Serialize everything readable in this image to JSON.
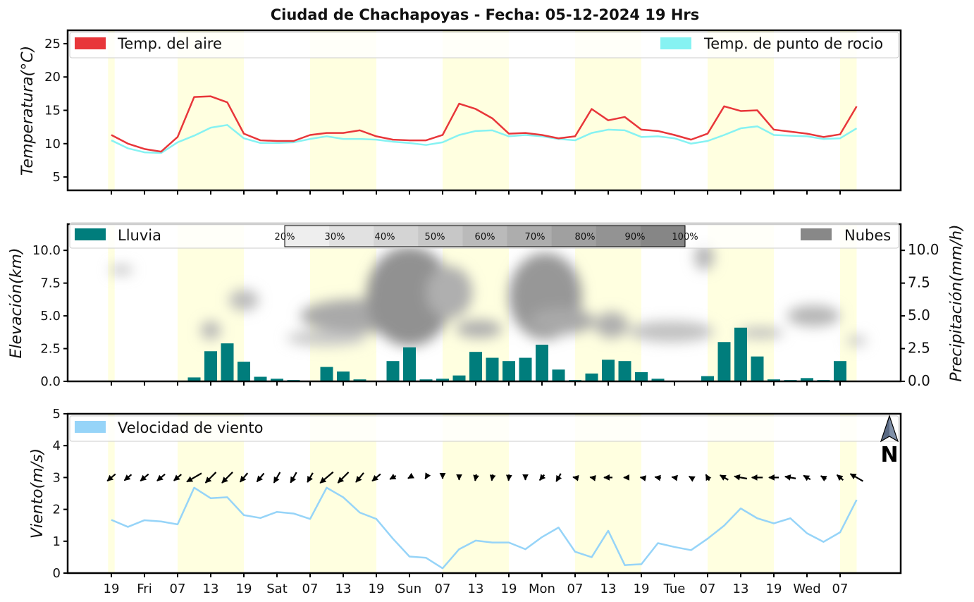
{
  "title": "Ciudad de Chachapoyas   -   Fecha: 05-12-2024 19 Hrs",
  "x_tick_labels": [
    "19",
    "Fri",
    "07",
    "13",
    "19",
    "Sat",
    "07",
    "13",
    "19",
    "Sun",
    "07",
    "13",
    "19",
    "Mon",
    "07",
    "13",
    "19",
    "Tue",
    "07",
    "13",
    "19",
    "Wed",
    "07"
  ],
  "day_bands": [
    [
      -0.1,
      0.1
    ],
    [
      2.0,
      4.0
    ],
    [
      6.0,
      8.0
    ],
    [
      10.0,
      12.0
    ],
    [
      14.0,
      16.0
    ],
    [
      18.0,
      20.0
    ],
    [
      22.0,
      22.5
    ]
  ],
  "chart_data": [
    {
      "type": "line",
      "ylabel": "Temperatura(°C)",
      "ylim": [
        3,
        27
      ],
      "yticks": [
        5,
        10,
        15,
        20,
        25
      ],
      "legend": {
        "left": "Temp. del aire",
        "right": "Temp. de punto de rocio"
      },
      "colors": {
        "air": "#e8363a",
        "dew": "#86f2f2",
        "band": "#ffffe0"
      },
      "x": [
        0,
        0.5,
        1,
        1.5,
        2,
        2.5,
        3,
        3.5,
        4,
        4.5,
        5,
        5.5,
        6,
        6.5,
        7,
        7.5,
        8,
        8.5,
        9,
        9.5,
        10,
        10.5,
        11,
        11.5,
        12,
        12.5,
        13,
        13.5,
        14,
        14.5,
        15,
        15.5,
        16,
        16.5,
        17,
        17.5,
        18,
        18.5,
        19,
        19.5,
        20,
        20.5,
        21,
        21.5,
        22,
        22.5
      ],
      "series": [
        {
          "name": "Temp. del aire",
          "values": [
            11.3,
            10.0,
            9.2,
            8.8,
            11.0,
            17.0,
            17.1,
            16.2,
            11.5,
            10.5,
            10.4,
            10.4,
            11.3,
            11.6,
            11.6,
            12.0,
            11.1,
            10.6,
            10.5,
            10.5,
            11.3,
            16.0,
            15.2,
            13.8,
            11.5,
            11.6,
            11.3,
            10.8,
            11.1,
            15.2,
            13.5,
            14.0,
            12.1,
            11.9,
            11.3,
            10.6,
            11.5,
            15.6,
            14.9,
            15.0,
            12.1,
            11.8,
            11.5,
            11.0,
            11.4,
            15.6
          ]
        },
        {
          "name": "Temp. de punto de rocio",
          "values": [
            10.5,
            9.3,
            8.7,
            8.6,
            10.2,
            11.2,
            12.4,
            12.8,
            10.8,
            10.1,
            10.1,
            10.2,
            10.7,
            11.1,
            10.7,
            10.7,
            10.6,
            10.3,
            10.1,
            9.8,
            10.2,
            11.3,
            11.9,
            12.0,
            11.1,
            11.3,
            11.1,
            10.7,
            10.5,
            11.6,
            12.1,
            12.0,
            11.0,
            11.1,
            10.8,
            10.0,
            10.4,
            11.3,
            12.3,
            12.6,
            11.3,
            11.2,
            11.1,
            10.7,
            10.8,
            12.3
          ]
        }
      ]
    },
    {
      "type": "bar",
      "ylabel": "Elevación(km)",
      "ylabel_right": "Precipitación(mm/h)",
      "ylim": [
        0,
        12
      ],
      "yticks": [
        0.0,
        2.5,
        5.0,
        7.5,
        10.0
      ],
      "yticks_right": [
        0.0,
        2.5,
        5.0,
        7.5,
        10.0
      ],
      "legend": {
        "left": "Lluvia",
        "right": "Nubes"
      },
      "colorbar_labels": [
        "20%",
        "30%",
        "40%",
        "50%",
        "60%",
        "70%",
        "80%",
        "90%",
        "100%"
      ],
      "colors": {
        "rain": "#007d7c",
        "cloud": "#888888"
      },
      "x": [
        0,
        0.5,
        1,
        1.5,
        2,
        2.5,
        3,
        3.5,
        4,
        4.5,
        5,
        5.5,
        6,
        6.5,
        7,
        7.5,
        8,
        8.5,
        9,
        9.5,
        10,
        10.5,
        11,
        11.5,
        12,
        12.5,
        13,
        13.5,
        14,
        14.5,
        15,
        15.5,
        16,
        16.5,
        17,
        17.5,
        18,
        18.5,
        19,
        19.5,
        20,
        20.5,
        21,
        21.5,
        22,
        22.5
      ],
      "values": [
        0,
        0,
        0,
        0,
        0,
        0.3,
        2.3,
        2.9,
        1.5,
        0.35,
        0.2,
        0.1,
        0.05,
        1.1,
        0.75,
        0.15,
        0.05,
        1.55,
        2.6,
        0.15,
        0.2,
        0.45,
        2.25,
        1.8,
        1.55,
        1.8,
        2.8,
        0.9,
        0.1,
        0.6,
        1.65,
        1.55,
        0.7,
        0.2,
        0.05,
        0.05,
        0.4,
        3.0,
        4.1,
        1.9,
        0.15,
        0.1,
        0.25,
        0.1,
        1.55,
        0
      ],
      "clouds": [
        {
          "x": 0.3,
          "y": 8.5,
          "rx": 0.35,
          "ry": 0.35,
          "level": 0.35
        },
        {
          "x": 3.0,
          "y": 3.9,
          "rx": 0.3,
          "ry": 0.7,
          "level": 0.45
        },
        {
          "x": 4.0,
          "y": 6.2,
          "rx": 0.45,
          "ry": 0.8,
          "level": 0.4
        },
        {
          "x": 6.5,
          "y": 3.3,
          "rx": 1.2,
          "ry": 0.6,
          "level": 0.3
        },
        {
          "x": 7.5,
          "y": 5.0,
          "rx": 1.8,
          "ry": 1.3,
          "level": 0.55
        },
        {
          "x": 9.0,
          "y": 6.5,
          "rx": 1.3,
          "ry": 3.8,
          "level": 0.75
        },
        {
          "x": 10.2,
          "y": 6.8,
          "rx": 0.7,
          "ry": 2.0,
          "level": 0.5
        },
        {
          "x": 11.1,
          "y": 4.0,
          "rx": 0.7,
          "ry": 0.7,
          "level": 0.5
        },
        {
          "x": 13.1,
          "y": 6.5,
          "rx": 1.1,
          "ry": 3.3,
          "level": 0.7
        },
        {
          "x": 13.6,
          "y": 4.6,
          "rx": 1.0,
          "ry": 1.0,
          "level": 0.55
        },
        {
          "x": 15.1,
          "y": 4.3,
          "rx": 0.5,
          "ry": 1.0,
          "level": 0.5
        },
        {
          "x": 16.9,
          "y": 3.8,
          "rx": 1.3,
          "ry": 0.8,
          "level": 0.35
        },
        {
          "x": 17.9,
          "y": 9.5,
          "rx": 0.3,
          "ry": 1.0,
          "level": 0.45
        },
        {
          "x": 19.6,
          "y": 3.7,
          "rx": 0.7,
          "ry": 0.4,
          "level": 0.4
        },
        {
          "x": 21.2,
          "y": 5.0,
          "rx": 0.8,
          "ry": 0.8,
          "level": 0.45
        },
        {
          "x": 22.5,
          "y": 3.1,
          "rx": 0.3,
          "ry": 0.4,
          "level": 0.3
        }
      ]
    },
    {
      "type": "line",
      "ylabel": "Viento(m/s)",
      "ylim": [
        0,
        5
      ],
      "yticks": [
        0,
        1,
        2,
        3,
        4,
        5
      ],
      "legend": {
        "left": "Velocidad de viento"
      },
      "compass_label": "N",
      "colors": {
        "wind": "#96d4f8"
      },
      "x": [
        0,
        0.5,
        1,
        1.5,
        2,
        2.5,
        3,
        3.5,
        4,
        4.5,
        5,
        5.5,
        6,
        6.5,
        7,
        7.5,
        8,
        8.5,
        9,
        9.5,
        10,
        10.5,
        11,
        11.5,
        12,
        12.5,
        13,
        13.5,
        14,
        14.5,
        15,
        15.5,
        16,
        16.5,
        17,
        17.5,
        18,
        18.5,
        19,
        19.5,
        20,
        20.5,
        21,
        21.5,
        22,
        22.5
      ],
      "series": [
        {
          "name": "Velocidad de viento",
          "values": [
            1.67,
            1.45,
            1.66,
            1.62,
            1.53,
            2.68,
            2.35,
            2.38,
            1.82,
            1.73,
            1.92,
            1.87,
            1.7,
            2.68,
            2.38,
            1.9,
            1.7,
            1.08,
            0.52,
            0.48,
            0.15,
            0.75,
            1.02,
            0.96,
            0.96,
            0.75,
            1.13,
            1.43,
            0.67,
            0.5,
            1.33,
            0.25,
            0.28,
            0.94,
            0.82,
            0.72,
            1.08,
            1.49,
            2.03,
            1.72,
            1.56,
            1.72,
            1.25,
            0.98,
            1.28,
            2.3
          ]
        }
      ],
      "wind_dir_deg": [
        310,
        310,
        310,
        310,
        310,
        300,
        315,
        315,
        320,
        320,
        330,
        330,
        330,
        310,
        315,
        320,
        310,
        300,
        300,
        330,
        0,
        0,
        350,
        350,
        355,
        0,
        320,
        330,
        260,
        260,
        270,
        270,
        260,
        260,
        260,
        240,
        210,
        240,
        260,
        270,
        270,
        260,
        240,
        240,
        230,
        240
      ]
    }
  ]
}
